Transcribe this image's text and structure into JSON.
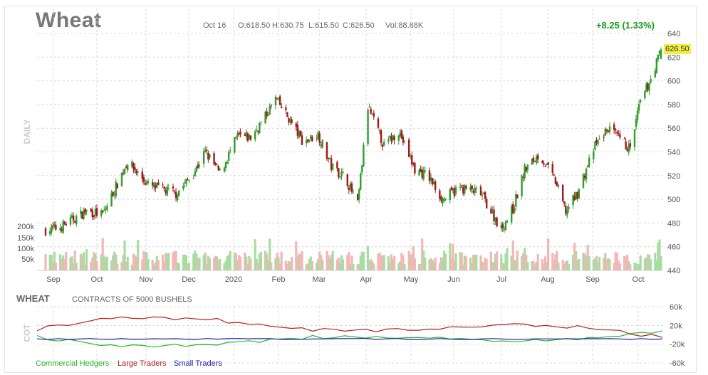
{
  "header": {
    "title": "Wheat",
    "date": "Oct 16",
    "open": "O:618.50",
    "high": "H:630.75",
    "low": "L:615.50",
    "close": "C:626.50",
    "volume": "Vol:88.88K",
    "change": "+8.25 (1.33%)",
    "last_price": "626.50"
  },
  "chart_data": [
    {
      "type": "candlestick",
      "ylabel": "DAILY",
      "ylim": [
        440,
        640
      ],
      "y_ticks": [
        "640",
        "620",
        "600",
        "580",
        "560",
        "540",
        "520",
        "500",
        "480",
        "460",
        "440"
      ],
      "x_ticks": [
        "Sep",
        "Oct",
        "Nov",
        "Dec",
        "2020",
        "Feb",
        "Mar",
        "Apr",
        "May",
        "Jun",
        "Jul",
        "Aug",
        "Sep",
        "Oct"
      ],
      "approx_close_path": [
        {
          "x": "Aug 23",
          "y": 474
        },
        {
          "x": "Sep 1",
          "y": 476
        },
        {
          "x": "Sep 20",
          "y": 490
        },
        {
          "x": "Oct 1",
          "y": 487
        },
        {
          "x": "Oct 18",
          "y": 532
        },
        {
          "x": "Nov 1",
          "y": 512
        },
        {
          "x": "Nov 20",
          "y": 505
        },
        {
          "x": "Dec 1",
          "y": 520
        },
        {
          "x": "Dec 10",
          "y": 540
        },
        {
          "x": "Dec 20",
          "y": 522
        },
        {
          "x": "Jan 1",
          "y": 553
        },
        {
          "x": "Jan 10",
          "y": 552
        },
        {
          "x": "Jan 20",
          "y": 570
        },
        {
          "x": "Jan 27",
          "y": 585
        },
        {
          "x": "Feb 5",
          "y": 568
        },
        {
          "x": "Feb 15",
          "y": 548
        },
        {
          "x": "Feb 25",
          "y": 555
        },
        {
          "x": "Mar 5",
          "y": 528
        },
        {
          "x": "Mar 15",
          "y": 518
        },
        {
          "x": "Mar 23",
          "y": 495
        },
        {
          "x": "Mar 30",
          "y": 578
        },
        {
          "x": "Apr 10",
          "y": 545
        },
        {
          "x": "Apr 20",
          "y": 558
        },
        {
          "x": "May 1",
          "y": 525
        },
        {
          "x": "May 10",
          "y": 520
        },
        {
          "x": "May 20",
          "y": 500
        },
        {
          "x": "Jun 1",
          "y": 510
        },
        {
          "x": "Jun 15",
          "y": 505
        },
        {
          "x": "Jun 29",
          "y": 475
        },
        {
          "x": "Jul 7",
          "y": 492
        },
        {
          "x": "Jul 15",
          "y": 525
        },
        {
          "x": "Jul 25",
          "y": 538
        },
        {
          "x": "Aug 5",
          "y": 515
        },
        {
          "x": "Aug 12",
          "y": 490
        },
        {
          "x": "Aug 20",
          "y": 505
        },
        {
          "x": "Sep 1",
          "y": 545
        },
        {
          "x": "Sep 10",
          "y": 560
        },
        {
          "x": "Sep 25",
          "y": 542
        },
        {
          "x": "Oct 1",
          "y": 578
        },
        {
          "x": "Oct 10",
          "y": 605
        },
        {
          "x": "Oct 16",
          "y": 626.5
        }
      ],
      "volume_ticks": [
        "200k",
        "150k",
        "100k",
        "50k"
      ],
      "volume_colors": {
        "up": "#a9dca0",
        "down": "#f4b6b6"
      }
    },
    {
      "type": "line",
      "title": "WHEAT",
      "subtitle": "CONTRACTS OF 5000 BUSHELS",
      "ylabel": "COT",
      "ylim": [
        -60000,
        60000
      ],
      "y_ticks": [
        "60k",
        "20k",
        "-20k",
        "-60k"
      ],
      "series": [
        {
          "name": "Commercial Hedgers",
          "color": "#22bb22"
        },
        {
          "name": "Large Traders",
          "color": "#b52020"
        },
        {
          "name": "Small Traders",
          "color": "#1f1fb0"
        }
      ]
    }
  ],
  "colors": {
    "up": "#2e9e2e",
    "down": "#a01818",
    "grid": "#d8d8d8",
    "badge": "#f5f03c"
  }
}
